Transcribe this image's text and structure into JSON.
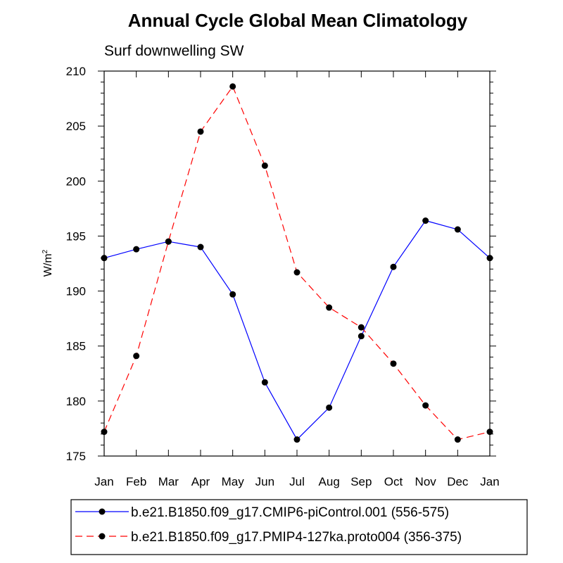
{
  "chart_data": {
    "type": "line",
    "title": "Annual Cycle Global Mean Climatology",
    "subtitle": "Surf downwelling SW",
    "ylabel": "W/m",
    "ylabel_superscript": "2",
    "categories": [
      "Jan",
      "Feb",
      "Mar",
      "Apr",
      "May",
      "Jun",
      "Jul",
      "Aug",
      "Sep",
      "Oct",
      "Nov",
      "Dec",
      "Jan"
    ],
    "ylim": [
      175,
      210
    ],
    "yticks": [
      175,
      180,
      185,
      190,
      195,
      200,
      205,
      210
    ],
    "grid": false,
    "legend_position": "bottom",
    "series": [
      {
        "name": "b.e21.B1850.f09_g17.CMIP6-piControl.001 (556-575)",
        "color": "#0000ff",
        "dash": "solid",
        "values": [
          193.0,
          193.8,
          194.5,
          194.0,
          189.7,
          181.7,
          176.5,
          179.4,
          185.9,
          192.2,
          196.4,
          195.6,
          193.0
        ]
      },
      {
        "name": "b.e21.B1850.f09_g17.PMIP4-127ka.proto004 (356-375)",
        "color": "#ff0000",
        "dash": "dashed",
        "values": [
          177.2,
          184.1,
          194.5,
          204.5,
          208.6,
          201.4,
          191.7,
          188.5,
          186.7,
          183.4,
          179.6,
          176.5,
          177.2
        ]
      }
    ]
  }
}
